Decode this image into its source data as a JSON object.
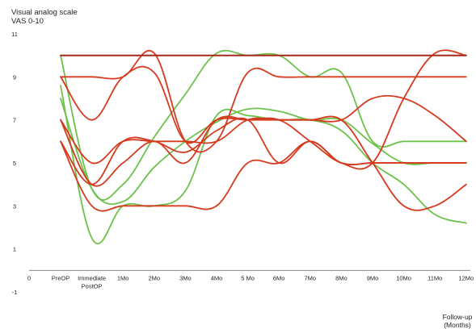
{
  "chart_data": {
    "type": "line",
    "ylabel_lines": [
      "Visual analog scale",
      "VAS 0-10"
    ],
    "xlabel_lines": [
      "Follow-up",
      "(Months)"
    ],
    "y_ticks": [
      "11",
      "9",
      "7",
      "5",
      "3",
      "1",
      "-1"
    ],
    "x_origin_label": "0",
    "categories": [
      [
        "PreOP"
      ],
      [
        "Immediate",
        "PostOP"
      ],
      [
        "1Mo"
      ],
      [
        "2Mo"
      ],
      [
        "3Mo"
      ],
      [
        "4Mo"
      ],
      [
        "5 Mo"
      ],
      [
        "6Mo"
      ],
      [
        "7Mo"
      ],
      [
        "8Mo"
      ],
      [
        "9Mo"
      ],
      [
        "10Mo"
      ],
      [
        "11Mo"
      ],
      [
        "12Mo"
      ]
    ],
    "ylim": [
      -1,
      11
    ],
    "grid": false,
    "colors": {
      "red": "#d63a1e",
      "green": "#6cc24a",
      "dark_red": "#a5281b"
    },
    "series": [
      {
        "color": "green",
        "values": [
          10,
          3.8,
          4,
          6.2,
          8.2,
          10.1,
          10,
          10,
          9,
          9.2,
          6,
          6,
          6,
          6
        ]
      },
      {
        "color": "green",
        "values": [
          8.6,
          1.5,
          3,
          3,
          3.7,
          7.2,
          7.2,
          7,
          7,
          6.5,
          5,
          4,
          2.6,
          2.2
        ]
      },
      {
        "color": "green",
        "values": [
          8,
          3.8,
          3.2,
          4.8,
          6,
          6.9,
          7.5,
          7.4,
          7,
          7,
          5.9,
          5,
          5,
          5
        ]
      },
      {
        "color": "red",
        "values": [
          9,
          7,
          9,
          9.2,
          6,
          7,
          7,
          7,
          6,
          5,
          5,
          8,
          10.1,
          10
        ]
      },
      {
        "color": "red",
        "values": [
          9,
          9,
          9,
          10.1,
          6,
          6,
          9.2,
          9,
          9,
          9,
          9,
          9,
          9,
          9
        ]
      },
      {
        "color": "red",
        "values": [
          7,
          4,
          5,
          6,
          5,
          7,
          7,
          7,
          7,
          7,
          8,
          8,
          7.2,
          6
        ]
      },
      {
        "color": "red",
        "values": [
          7,
          5,
          6,
          6,
          6,
          6,
          7,
          7,
          7,
          7,
          5,
          3,
          3,
          4
        ]
      },
      {
        "color": "red",
        "values": [
          6,
          4,
          6,
          6,
          5.5,
          6.5,
          7,
          5,
          6,
          5,
          5,
          5,
          5,
          5
        ]
      },
      {
        "color": "red",
        "values": [
          6,
          3,
          3,
          3,
          3,
          3,
          5,
          5,
          6,
          5,
          5,
          5,
          5,
          5
        ]
      },
      {
        "color": "dark_red",
        "values": [
          10,
          10,
          10,
          10,
          10,
          10,
          10,
          10,
          10,
          10,
          10,
          10,
          10,
          10
        ]
      }
    ]
  }
}
